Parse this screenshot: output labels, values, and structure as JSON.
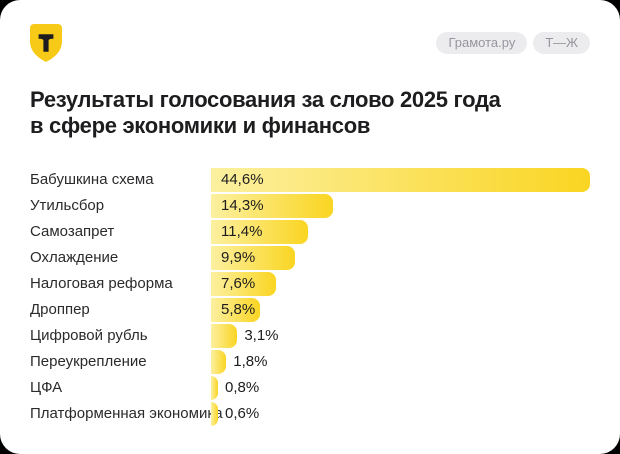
{
  "header": {
    "logo_icon": "tbank-shield-icon",
    "badges": [
      "Грамота.ру",
      "Т—Ж"
    ]
  },
  "title": {
    "full": "Результаты голосования за слово 2025 года в сфере экономики и финансов",
    "line1": "Результаты голосования за слово 2025 года",
    "line2": "в сфере экономики и финансов"
  },
  "chart_data": {
    "type": "bar",
    "orientation": "horizontal",
    "title": "Результаты голосования за слово 2025 года в сфере экономики и финансов",
    "categories": [
      "Бабушкина схема",
      "Утильсбор",
      "Самозапрет",
      "Охлаждение",
      "Налоговая реформа",
      "Дроппер",
      "Цифровой рубль",
      "Переукрепление",
      "ЦФА",
      "Платформенная экономика"
    ],
    "values": [
      44.6,
      14.3,
      11.4,
      9.9,
      7.6,
      5.8,
      3.1,
      1.8,
      0.8,
      0.6
    ],
    "value_labels": [
      "44,6%",
      "14,3%",
      "11,4%",
      "9,9%",
      "7,6%",
      "5,8%",
      "3,1%",
      "1,8%",
      "0,8%",
      "0,6%"
    ],
    "xlim": [
      0,
      44.6
    ],
    "grid": false,
    "legend": false,
    "value_label_inside_threshold": 5.0
  },
  "colors": {
    "page_background": "#000000",
    "card_background": "#ffffff",
    "brand_yellow": "#f8ca18",
    "bar_gradient_start": "#fcf0a0",
    "bar_gradient_end": "#fad522",
    "title_text": "#1d1d1f",
    "label_text": "#2b2b2d",
    "badge_background": "#ececee",
    "badge_text": "#96969e"
  }
}
